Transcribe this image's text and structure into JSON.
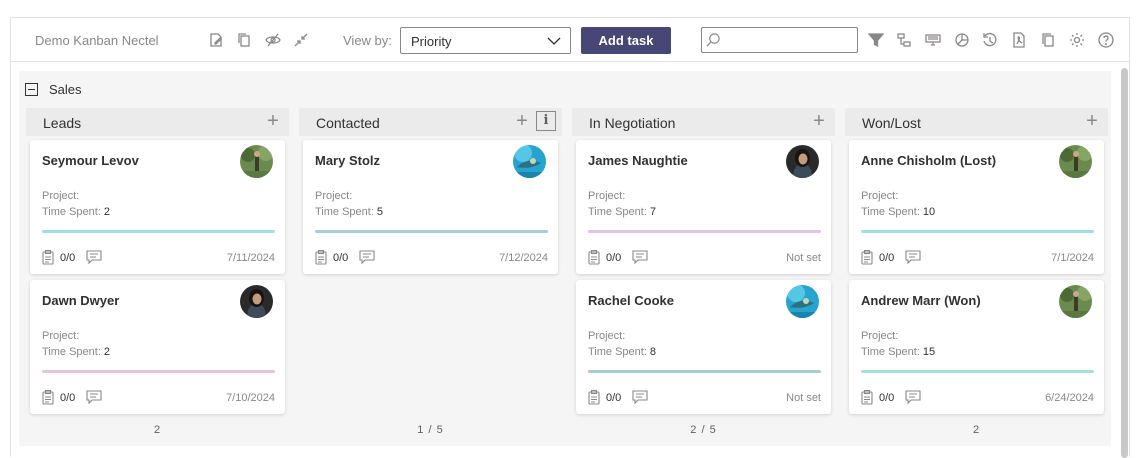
{
  "toolbar": {
    "app_title": "Demo Kanban Nectel",
    "view_by_label": "View by:",
    "view_by_value": "Priority",
    "add_task_label": "Add task",
    "search_placeholder": "",
    "icons": [
      "edit-icon",
      "copy-icon",
      "hide-icon",
      "collapse-icon",
      "filter-icon",
      "hierarchy-icon",
      "tv-icon",
      "chart-icon",
      "history-icon",
      "pdf-icon",
      "duplicate-icon",
      "settings-icon",
      "help-icon"
    ]
  },
  "board": {
    "swimlane": "Sales",
    "colors": {
      "teal": "#9fe0e2",
      "pink": "#e3c3e6",
      "slate": "#a6cdd9"
    },
    "columns": [
      {
        "title": "Leads",
        "footer": "2",
        "cards": [
          {
            "name": "Seymour Levov",
            "project_label": "Project:",
            "time_label": "Time Spent:",
            "time": "2",
            "checks": "0/0",
            "date": "7/11/2024",
            "bar": "teal",
            "avatar": "forest"
          },
          {
            "name": "Dawn Dwyer",
            "project_label": "Project:",
            "time_label": "Time Spent:",
            "time": "2",
            "checks": "0/0",
            "date": "7/10/2024",
            "bar": "pink",
            "avatar": "woman"
          }
        ]
      },
      {
        "title": "Contacted",
        "footer": "1 / 5",
        "cards": [
          {
            "name": "Mary Stolz",
            "project_label": "Project:",
            "time_label": "Time Spent:",
            "time": "5",
            "checks": "0/0",
            "date": "7/12/2024",
            "bar": "slate",
            "avatar": "ocean"
          }
        ]
      },
      {
        "title": "In Negotiation",
        "footer": "2 / 5",
        "cards": [
          {
            "name": "James Naughtie",
            "project_label": "Project:",
            "time_label": "Time Spent:",
            "time": "7",
            "checks": "0/0",
            "date": "Not set",
            "bar": "pink",
            "avatar": "woman"
          },
          {
            "name": "Rachel Cooke",
            "project_label": "Project:",
            "time_label": "Time Spent:",
            "time": "8",
            "checks": "0/0",
            "date": "Not set",
            "bar": "slate",
            "avatar": "ocean"
          }
        ]
      },
      {
        "title": "Won/Lost",
        "footer": "2",
        "cards": [
          {
            "name": "Anne Chisholm (Lost)",
            "project_label": "Project:",
            "time_label": "Time Spent:",
            "time": "10",
            "checks": "0/0",
            "date": "7/1/2024",
            "bar": "teal",
            "avatar": "forest"
          },
          {
            "name": "Andrew Marr (Won)",
            "project_label": "Project:",
            "time_label": "Time Spent:",
            "time": "15",
            "checks": "0/0",
            "date": "6/24/2024",
            "bar": "teal",
            "avatar": "forest"
          }
        ]
      }
    ]
  }
}
